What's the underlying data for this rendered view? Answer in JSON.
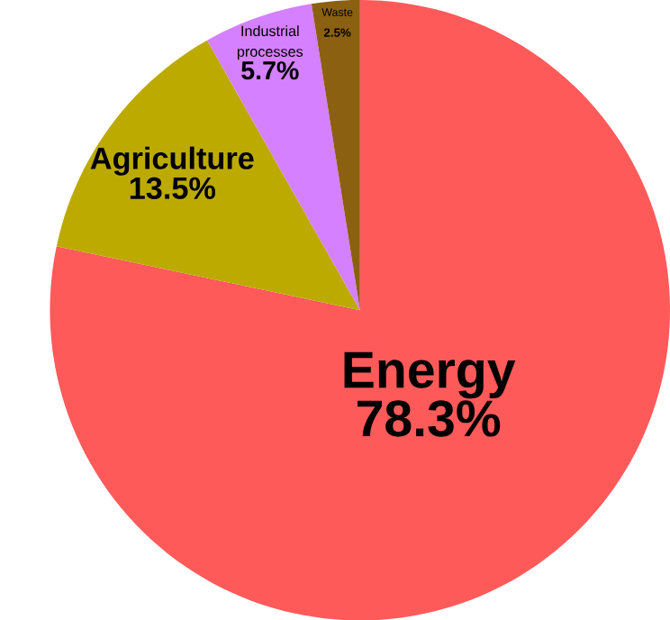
{
  "chart_data": {
    "type": "pie",
    "categories": [
      "Energy",
      "Agriculture",
      "Industrial processes",
      "Waste"
    ],
    "values": [
      78.3,
      13.5,
      5.7,
      2.5
    ],
    "value_labels": [
      "78.3%",
      "13.5%",
      "5.7%",
      "2.5%"
    ],
    "colors": [
      "#ff5a5a",
      "#bcaa00",
      "#d580ff",
      "#8b6010"
    ]
  }
}
